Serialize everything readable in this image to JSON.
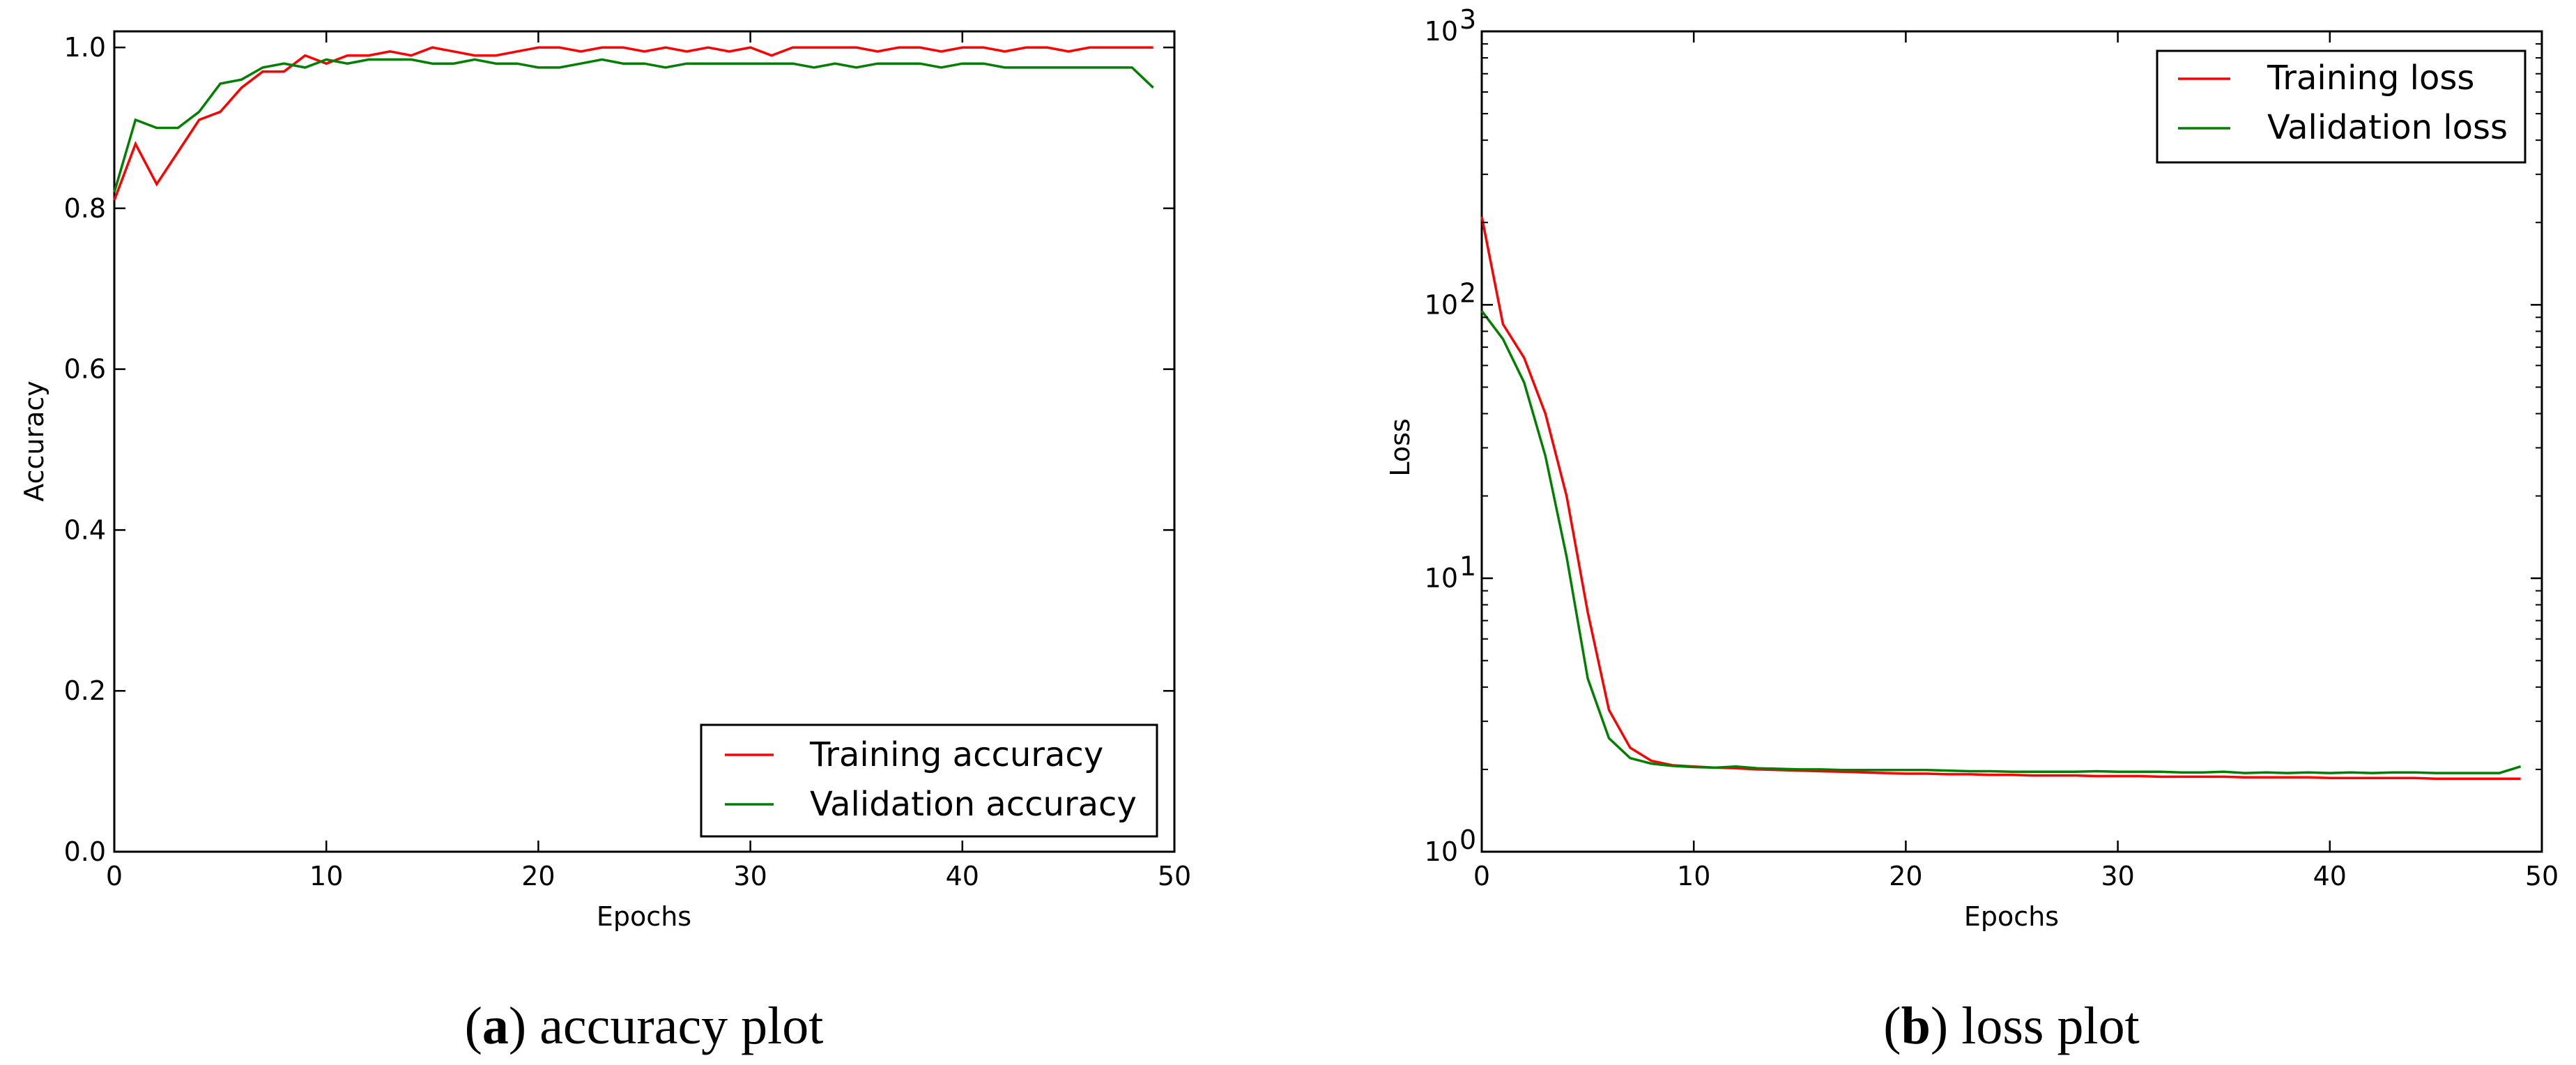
{
  "chart_data": [
    {
      "type": "line",
      "xlabel": "Epochs",
      "ylabel": "Accuracy",
      "xlim": [
        0,
        50
      ],
      "ylim": [
        0.0,
        1.02
      ],
      "xticks": [
        0,
        10,
        20,
        30,
        40,
        50
      ],
      "xtick_labels": [
        "0",
        "10",
        "20",
        "30",
        "40",
        "50"
      ],
      "yticks": [
        0.0,
        0.2,
        0.4,
        0.6,
        0.8,
        1.0
      ],
      "ytick_labels": [
        "0.0",
        "0.2",
        "0.4",
        "0.6",
        "0.8",
        "1.0"
      ],
      "legend_position": "bottom-right",
      "caption_letter": "a",
      "caption_text": "accuracy plot",
      "x": [
        0,
        1,
        2,
        3,
        4,
        5,
        6,
        7,
        8,
        9,
        10,
        11,
        12,
        13,
        14,
        15,
        16,
        17,
        18,
        19,
        20,
        21,
        22,
        23,
        24,
        25,
        26,
        27,
        28,
        29,
        30,
        31,
        32,
        33,
        34,
        35,
        36,
        37,
        38,
        39,
        40,
        41,
        42,
        43,
        44,
        45,
        46,
        47,
        48,
        49
      ],
      "series": [
        {
          "name": "Training accuracy",
          "color": "#ff0000",
          "values": [
            0.81,
            0.88,
            0.83,
            0.87,
            0.91,
            0.92,
            0.95,
            0.97,
            0.97,
            0.99,
            0.98,
            0.99,
            0.99,
            0.995,
            0.99,
            1.0,
            0.995,
            0.99,
            0.99,
            0.995,
            1.0,
            1.0,
            0.995,
            1.0,
            1.0,
            0.995,
            1.0,
            0.995,
            1.0,
            0.995,
            1.0,
            0.99,
            1.0,
            1.0,
            1.0,
            1.0,
            0.995,
            1.0,
            1.0,
            0.995,
            1.0,
            1.0,
            0.995,
            1.0,
            1.0,
            0.995,
            1.0,
            1.0,
            1.0,
            1.0
          ]
        },
        {
          "name": "Validation accuracy",
          "color": "#007f00",
          "values": [
            0.82,
            0.91,
            0.9,
            0.9,
            0.92,
            0.955,
            0.96,
            0.975,
            0.98,
            0.975,
            0.985,
            0.98,
            0.985,
            0.985,
            0.985,
            0.98,
            0.98,
            0.985,
            0.98,
            0.98,
            0.975,
            0.975,
            0.98,
            0.985,
            0.98,
            0.98,
            0.975,
            0.98,
            0.98,
            0.98,
            0.98,
            0.98,
            0.98,
            0.975,
            0.98,
            0.975,
            0.98,
            0.98,
            0.98,
            0.975,
            0.98,
            0.98,
            0.975,
            0.975,
            0.975,
            0.975,
            0.975,
            0.975,
            0.975,
            0.95
          ]
        }
      ]
    },
    {
      "type": "line",
      "yscale": "log",
      "xlabel": "Epochs",
      "ylabel": "Loss",
      "xlim": [
        0,
        50
      ],
      "ylim": [
        1,
        1000
      ],
      "xticks": [
        0,
        10,
        20,
        30,
        40,
        50
      ],
      "xtick_labels": [
        "0",
        "10",
        "20",
        "30",
        "40",
        "50"
      ],
      "yticks": [
        1,
        10,
        100,
        1000
      ],
      "ytick_bases": [
        "10",
        "10",
        "10",
        "10"
      ],
      "ytick_exponents": [
        "0",
        "1",
        "2",
        "3"
      ],
      "legend_position": "top-right",
      "caption_letter": "b",
      "caption_text": "loss plot",
      "x": [
        0,
        1,
        2,
        3,
        4,
        5,
        6,
        7,
        8,
        9,
        10,
        11,
        12,
        13,
        14,
        15,
        16,
        17,
        18,
        19,
        20,
        21,
        22,
        23,
        24,
        25,
        26,
        27,
        28,
        29,
        30,
        31,
        32,
        33,
        34,
        35,
        36,
        37,
        38,
        39,
        40,
        41,
        42,
        43,
        44,
        45,
        46,
        47,
        48,
        49
      ],
      "series": [
        {
          "name": "Training loss",
          "color": "#ff0000",
          "values": [
            210,
            85,
            64,
            40,
            20,
            7.5,
            3.3,
            2.4,
            2.15,
            2.07,
            2.05,
            2.03,
            2.02,
            2.0,
            1.99,
            1.98,
            1.97,
            1.96,
            1.95,
            1.94,
            1.93,
            1.93,
            1.92,
            1.92,
            1.91,
            1.91,
            1.9,
            1.9,
            1.9,
            1.89,
            1.89,
            1.89,
            1.88,
            1.88,
            1.88,
            1.88,
            1.87,
            1.87,
            1.87,
            1.87,
            1.86,
            1.86,
            1.86,
            1.86,
            1.86,
            1.85,
            1.85,
            1.85,
            1.85,
            1.85
          ]
        },
        {
          "name": "Validation loss",
          "color": "#007f00",
          "values": [
            95,
            75,
            52,
            28,
            12,
            4.3,
            2.6,
            2.2,
            2.1,
            2.06,
            2.04,
            2.03,
            2.05,
            2.02,
            2.01,
            2.0,
            2.0,
            1.99,
            1.99,
            1.99,
            1.99,
            1.99,
            1.98,
            1.97,
            1.97,
            1.96,
            1.96,
            1.96,
            1.96,
            1.97,
            1.96,
            1.96,
            1.96,
            1.95,
            1.95,
            1.96,
            1.94,
            1.95,
            1.94,
            1.95,
            1.94,
            1.95,
            1.94,
            1.95,
            1.95,
            1.94,
            1.94,
            1.94,
            1.94,
            2.05
          ]
        }
      ]
    }
  ]
}
